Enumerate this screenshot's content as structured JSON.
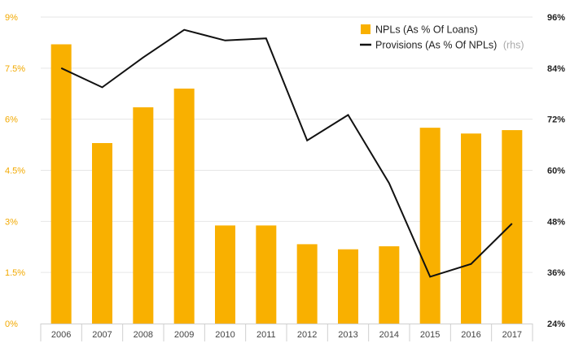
{
  "chart_data": {
    "type": "bar+line",
    "categories": [
      "2006",
      "2007",
      "2008",
      "2009",
      "2010",
      "2011",
      "2012",
      "2013",
      "2014",
      "2015",
      "2016",
      "2017"
    ],
    "series": [
      {
        "name": "NPLs (As % Of Loans)",
        "type": "bar",
        "axis": "left",
        "color": "#F9B000",
        "values": [
          8.2,
          5.3,
          6.35,
          6.9,
          2.88,
          2.88,
          2.33,
          2.18,
          2.27,
          5.75,
          5.58,
          5.68
        ]
      },
      {
        "name": "Provisions (As % Of NPLs)",
        "type": "line",
        "axis": "right",
        "color": "#111111",
        "values": [
          84,
          79.5,
          86.5,
          93,
          90.5,
          91,
          67,
          73,
          57,
          35,
          38,
          47.5
        ]
      }
    ],
    "legend_note": "(rhs)",
    "left_axis": {
      "ticks": [
        "0%",
        "1.5%",
        "3%",
        "4.5%",
        "6%",
        "7.5%",
        "9%"
      ],
      "range": [
        0,
        9
      ]
    },
    "right_axis": {
      "ticks": [
        "24%",
        "36%",
        "48%",
        "60%",
        "72%",
        "84%",
        "96%"
      ],
      "range": [
        24,
        96
      ]
    },
    "grid": true,
    "legend_position": "top-right"
  }
}
